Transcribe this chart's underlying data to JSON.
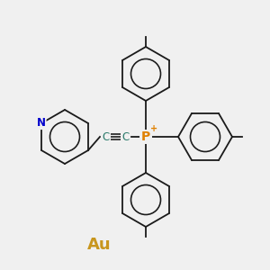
{
  "bg_color": "#f0f0f0",
  "bond_color": "#1a1a1a",
  "P_color": "#e08000",
  "N_color": "#0000cc",
  "Au_color": "#c8961e",
  "C_color": "#2a7a6a",
  "label_P": "P",
  "label_plus": "+",
  "label_C1": "C",
  "label_C2": "C",
  "label_N": "N",
  "label_Au": "Au",
  "figsize": [
    3.0,
    3.0
  ],
  "dpi": 100
}
